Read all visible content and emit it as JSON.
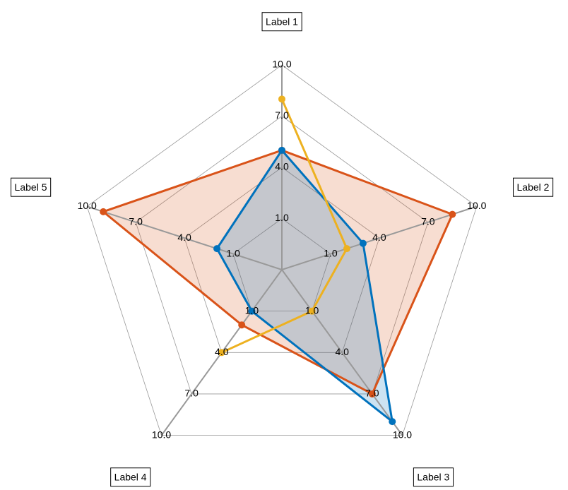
{
  "chart_data": {
    "type": "radar",
    "categories": [
      "Label 1",
      "Label 2",
      "Label 3",
      "Label 4",
      "Label 5"
    ],
    "rlim": [
      -2,
      10
    ],
    "rticks": [
      {
        "value": 1,
        "label": "1.0"
      },
      {
        "value": 4,
        "label": "4.0"
      },
      {
        "value": 7,
        "label": "7.0"
      },
      {
        "value": 10,
        "label": "10.0"
      }
    ],
    "grid": true,
    "series": [
      {
        "color": "#d95319",
        "fill": true,
        "values": [
          5,
          8.5,
          7,
          2,
          9
        ]
      },
      {
        "color": "#0072bd",
        "fill": true,
        "values": [
          5,
          3,
          9,
          1,
          2
        ]
      },
      {
        "color": "#edb120",
        "fill": false,
        "values": [
          8,
          2,
          1,
          4,
          null
        ]
      }
    ]
  }
}
